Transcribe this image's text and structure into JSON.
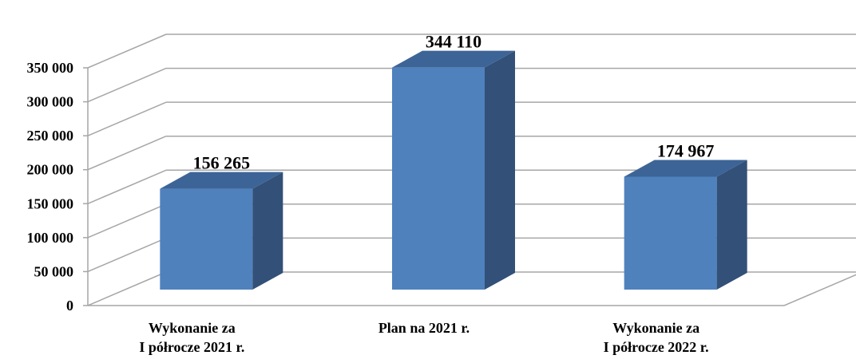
{
  "chart_data": {
    "type": "bar",
    "style": "3d-column",
    "categories": [
      [
        "Wykonanie za",
        "I półrocze 2021 r."
      ],
      [
        "Plan na 2021 r."
      ],
      [
        "Wykonanie za",
        "I półrocze 2022 r."
      ]
    ],
    "values": [
      156265,
      344110,
      174967
    ],
    "data_labels": [
      "156 265",
      "344 110",
      "174 967"
    ],
    "y_ticks": [
      {
        "value": 0,
        "label": "0"
      },
      {
        "value": 50000,
        "label": "50 000"
      },
      {
        "value": 100000,
        "label": "100 000"
      },
      {
        "value": 150000,
        "label": "150 000"
      },
      {
        "value": 200000,
        "label": "200 000"
      },
      {
        "value": 250000,
        "label": "250 000"
      },
      {
        "value": 300000,
        "label": "300 000"
      },
      {
        "value": 350000,
        "label": "350 000"
      }
    ],
    "ylim": [
      0,
      350000
    ],
    "grid": true,
    "legend": "none",
    "colors": {
      "front": "#4f81bd",
      "side": "#325078",
      "top": "#3d6496",
      "grid": "#a6a6a6"
    }
  }
}
